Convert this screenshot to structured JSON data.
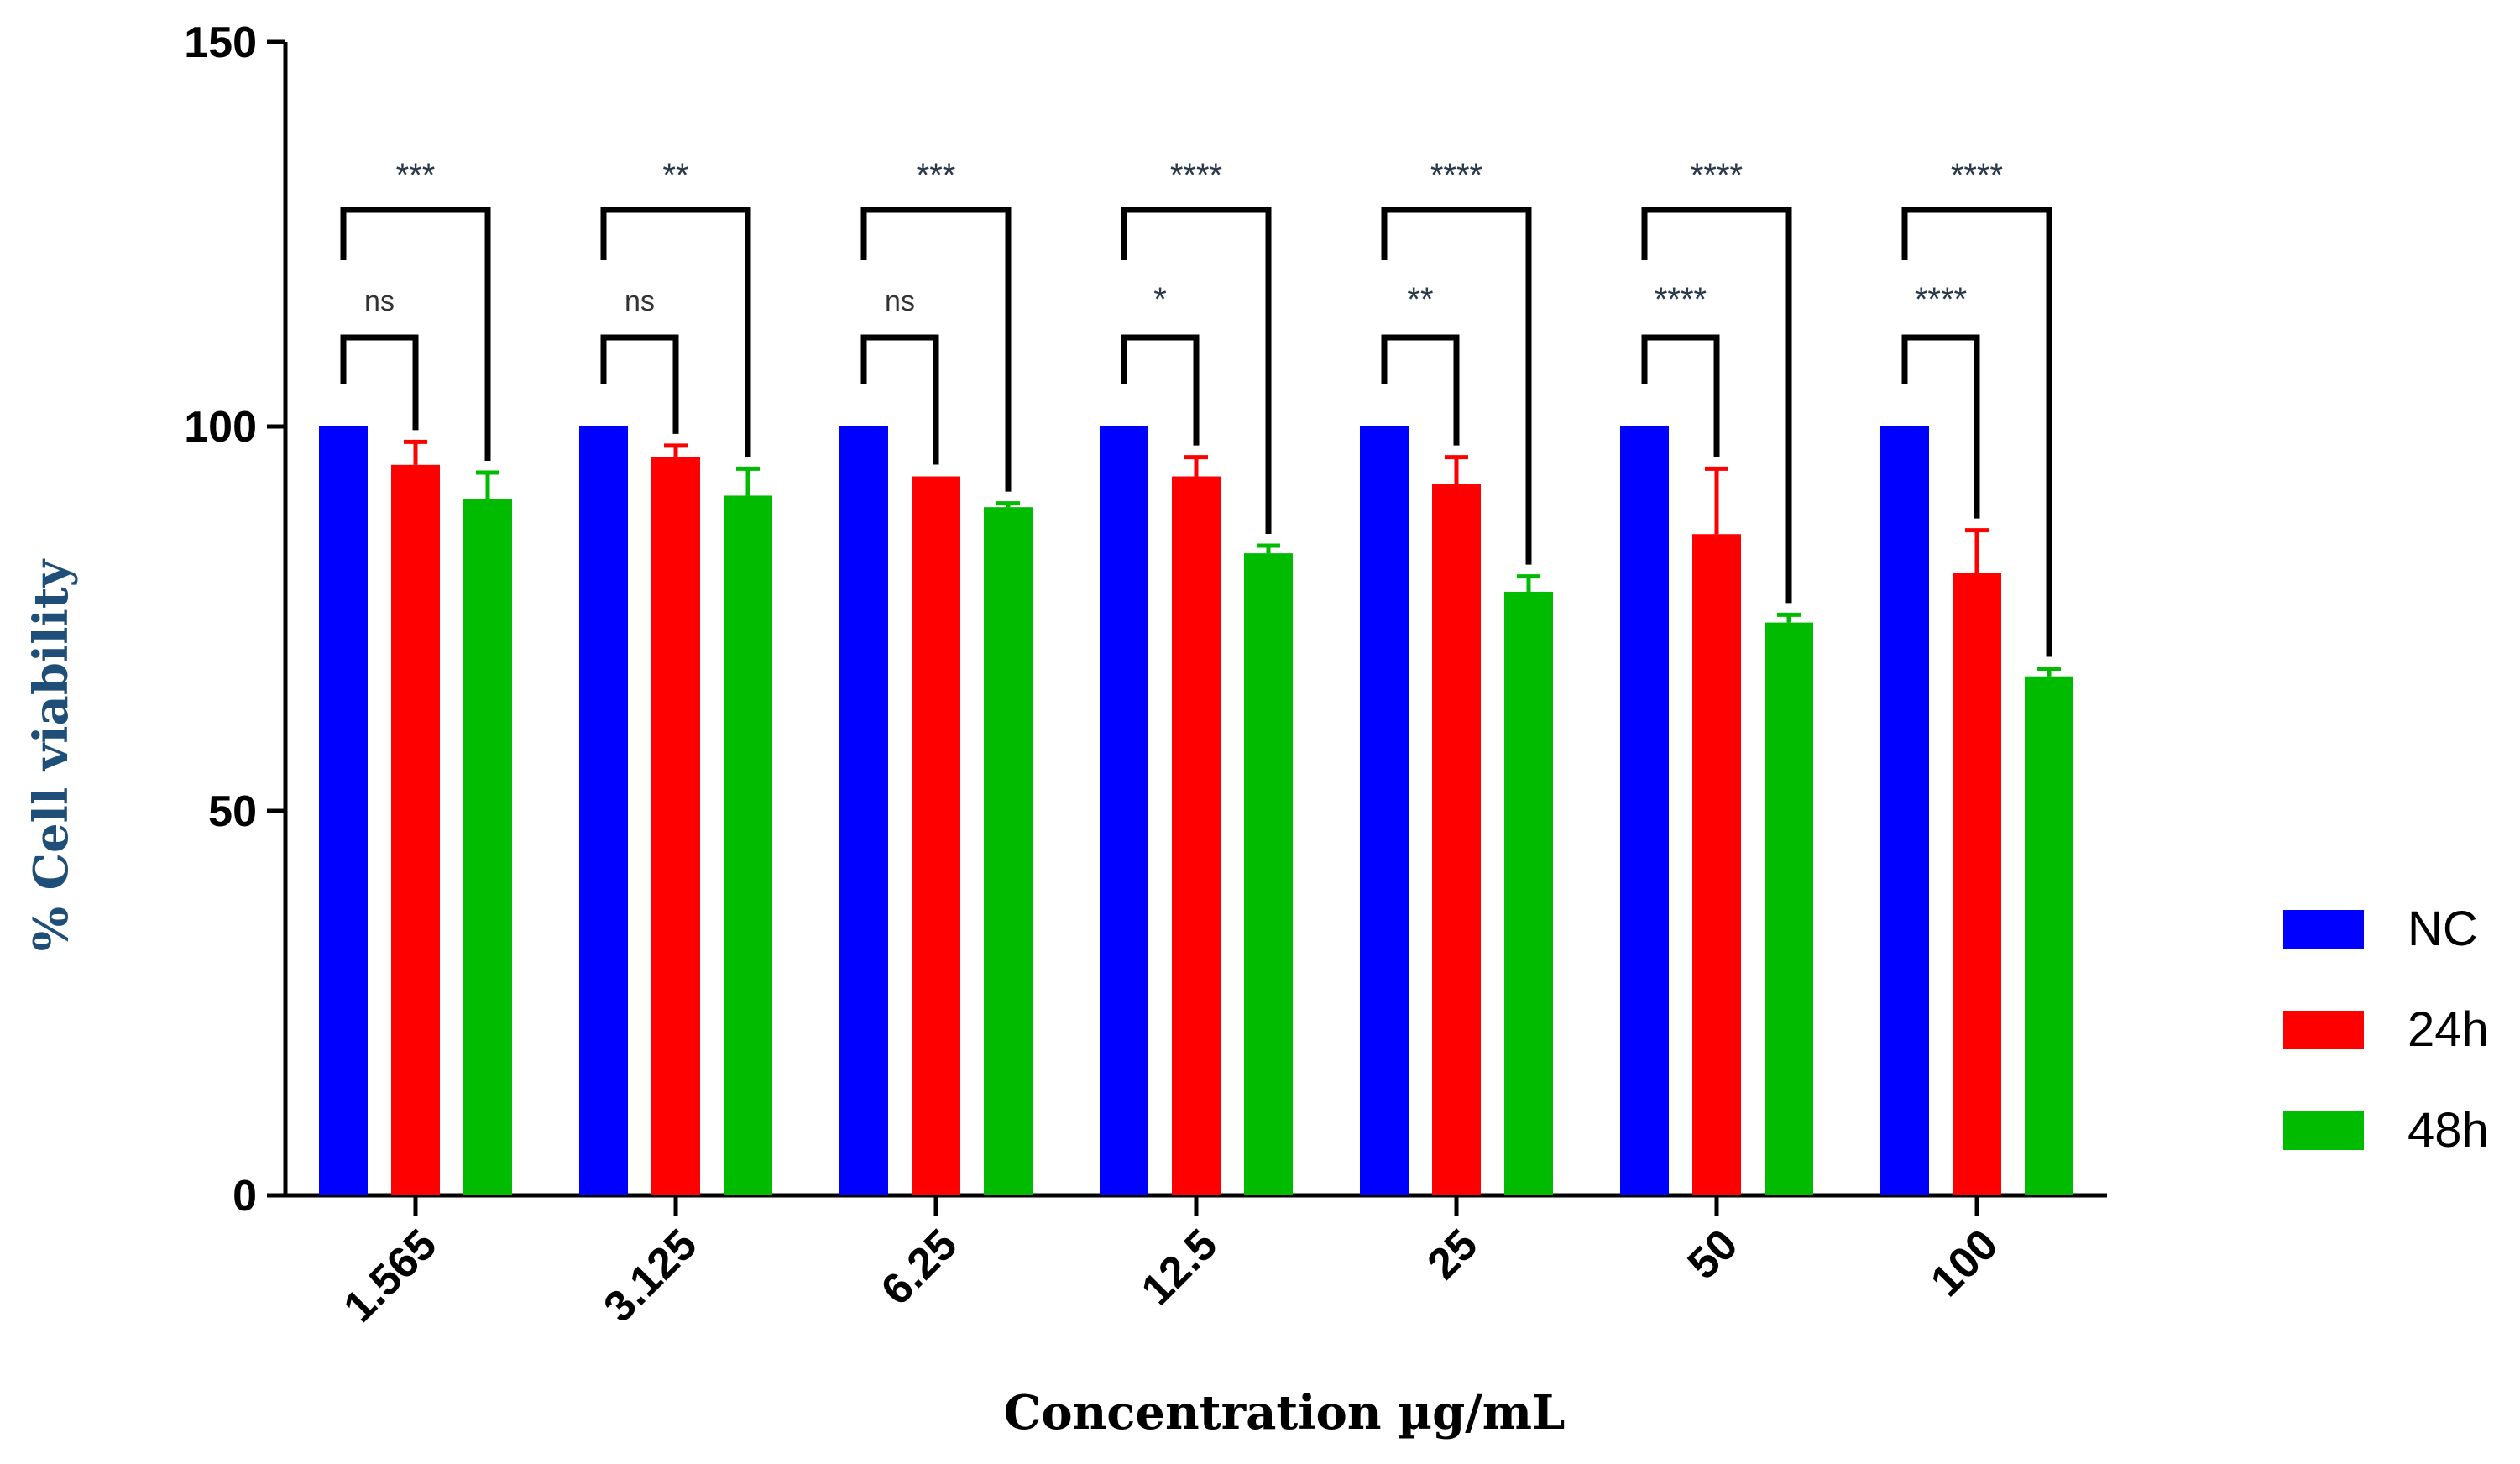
{
  "chart_data": {
    "type": "bar",
    "xlabel": "Concentration µg/mL",
    "ylabel": "% Cell viability",
    "ylim": [
      0,
      150
    ],
    "yticks": [
      0,
      50,
      100,
      150
    ],
    "categories": [
      "1.565",
      "3.125",
      "6.25",
      "12.5",
      "25",
      "50",
      "100"
    ],
    "series": [
      {
        "name": "NC",
        "color": "#0000ff",
        "values": [
          100,
          100,
          100,
          100,
          100,
          100,
          100
        ],
        "errors": [
          0,
          0,
          0,
          0,
          0,
          0,
          0
        ]
      },
      {
        "name": "24h",
        "color": "#ff0000",
        "values": [
          95,
          96,
          93.5,
          93.5,
          92.5,
          86,
          81
        ],
        "errors": [
          3,
          1.5,
          0,
          2.5,
          3.5,
          8.5,
          5.5
        ]
      },
      {
        "name": "48h",
        "color": "#00bb00",
        "values": [
          90.5,
          91,
          89.5,
          83.5,
          78.5,
          74.5,
          67.5
        ],
        "errors": [
          3.5,
          3.5,
          0.5,
          1,
          2,
          1,
          1
        ]
      }
    ],
    "comparisons": {
      "nc_vs_48h": [
        "***",
        "**",
        "***",
        "****",
        "****",
        "****",
        "****"
      ],
      "nc_vs_24h": [
        "ns",
        "ns",
        "ns",
        "*",
        "**",
        "****",
        "****"
      ]
    },
    "legend_position": "right",
    "grid": false
  }
}
